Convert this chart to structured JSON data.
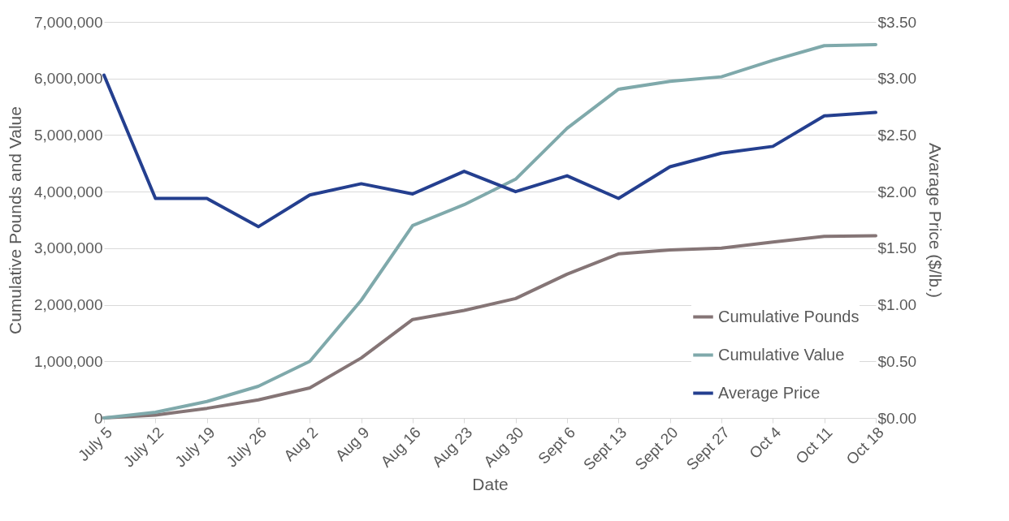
{
  "chart_data": {
    "type": "line",
    "xlabel": "Date",
    "ylabel": "Cumulative Pounds and Value",
    "y2label": "Avarage Price ($/lb.)",
    "categories": [
      "July 5",
      "July 12",
      "July 19",
      "July 26",
      "Aug 2",
      "Aug 9",
      "Aug 16",
      "Aug 23",
      "Aug 30",
      "Sept 6",
      "Sept 13",
      "Sept 20",
      "Sept 27",
      "Oct 4",
      "Oct 11",
      "Oct 18"
    ],
    "series": [
      {
        "name": "Cumulative Pounds",
        "color": "#857576",
        "values": [
          0,
          50000,
          170000,
          320000,
          530000,
          1060000,
          1740000,
          1900000,
          2110000,
          2540000,
          2900000,
          2970000,
          3000000,
          3110000,
          3210000,
          3220000
        ]
      },
      {
        "name": "Cumulative Value",
        "color": "#7fa9ab",
        "values": [
          0,
          100000,
          290000,
          560000,
          1000000,
          2080000,
          3400000,
          3770000,
          4220000,
          5120000,
          5810000,
          5950000,
          6030000,
          6320000,
          6580000,
          6600000
        ]
      },
      {
        "name": "Average Price",
        "color": "#243f8f",
        "axis": "y2",
        "values": [
          3.03,
          1.94,
          1.94,
          1.69,
          1.97,
          2.07,
          1.98,
          2.18,
          2.0,
          2.14,
          1.94,
          2.22,
          2.34,
          2.4,
          2.67,
          2.7
        ]
      }
    ],
    "ylim": [
      0,
      7000000
    ],
    "yticks": [
      {
        "value": 0,
        "label": "0"
      },
      {
        "value": 1000000,
        "label": "1,000,000"
      },
      {
        "value": 2000000,
        "label": "2,000,000"
      },
      {
        "value": 3000000,
        "label": "3,000,000"
      },
      {
        "value": 4000000,
        "label": "4,000,000"
      },
      {
        "value": 5000000,
        "label": "5,000,000"
      },
      {
        "value": 6000000,
        "label": "6,000,000"
      },
      {
        "value": 7000000,
        "label": "7,000,000"
      }
    ],
    "y2lim": [
      0,
      3.5
    ],
    "y2ticks": [
      {
        "value": 0,
        "label": "$0.00"
      },
      {
        "value": 0.5,
        "label": "$0.50"
      },
      {
        "value": 1,
        "label": "$1.00"
      },
      {
        "value": 1.5,
        "label": "$1.50"
      },
      {
        "value": 2,
        "label": "$2.00"
      },
      {
        "value": 2.5,
        "label": "$2.50"
      },
      {
        "value": 3,
        "label": "$3.00"
      },
      {
        "value": 3.5,
        "label": "$3.50"
      }
    ],
    "grid": "y",
    "legend": "bottom right",
    "line_style": "solid",
    "marker": "none"
  }
}
